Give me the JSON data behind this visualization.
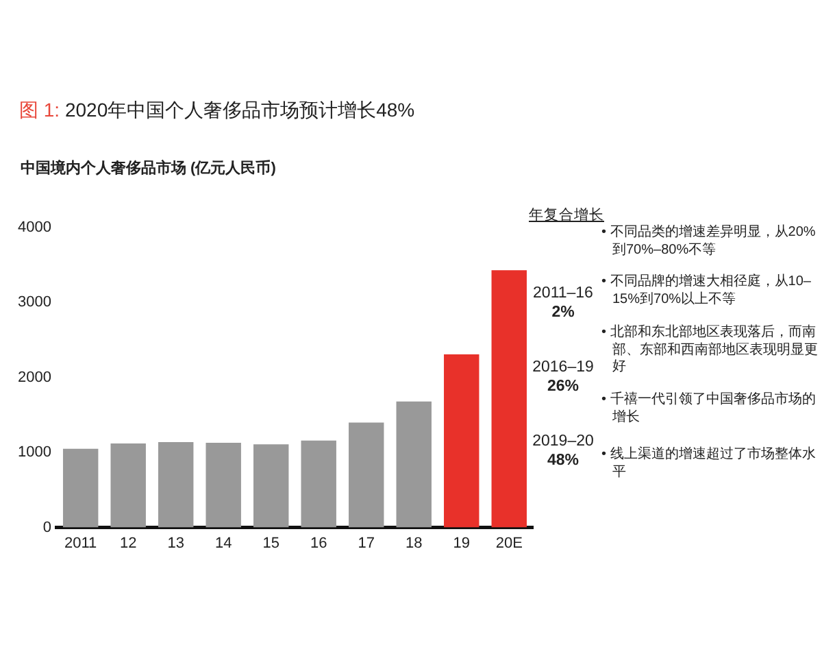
{
  "chart_data": {
    "type": "bar",
    "title": "图 1: 2020年中国个人奢侈品市场预计增长48%",
    "subtitle": "中国境内个人奢侈品市场 (亿元人民币)",
    "categories": [
      "2011",
      "12",
      "13",
      "14",
      "15",
      "16",
      "17",
      "18",
      "19",
      "20E"
    ],
    "values": [
      1050,
      1120,
      1140,
      1130,
      1110,
      1160,
      1400,
      1680,
      2310,
      3430
    ],
    "colors": [
      "#999999",
      "#999999",
      "#999999",
      "#999999",
      "#999999",
      "#999999",
      "#999999",
      "#999999",
      "#e8312a",
      "#e8312a"
    ],
    "ylim": [
      0,
      4000
    ],
    "yticks": [
      0,
      1000,
      2000,
      3000,
      4000
    ],
    "grid": false,
    "annotations": [
      "年复合增长",
      "2011–16\n2%",
      "2016–19\n26%",
      "2019–20\n48%",
      "• 不同品类的增速差异明显，从20%到70%–80%不等",
      "• 不同品牌的增速大相径庭，从10–15%到70%以上不等",
      "• 北部和东北部地区表现落后，而南部、东部和西南部地区表现明显更好",
      "• 千禧一代引领了中国奢侈品市场的增长",
      "• 线上渠道的增速超过了市场整体水平"
    ]
  }
}
